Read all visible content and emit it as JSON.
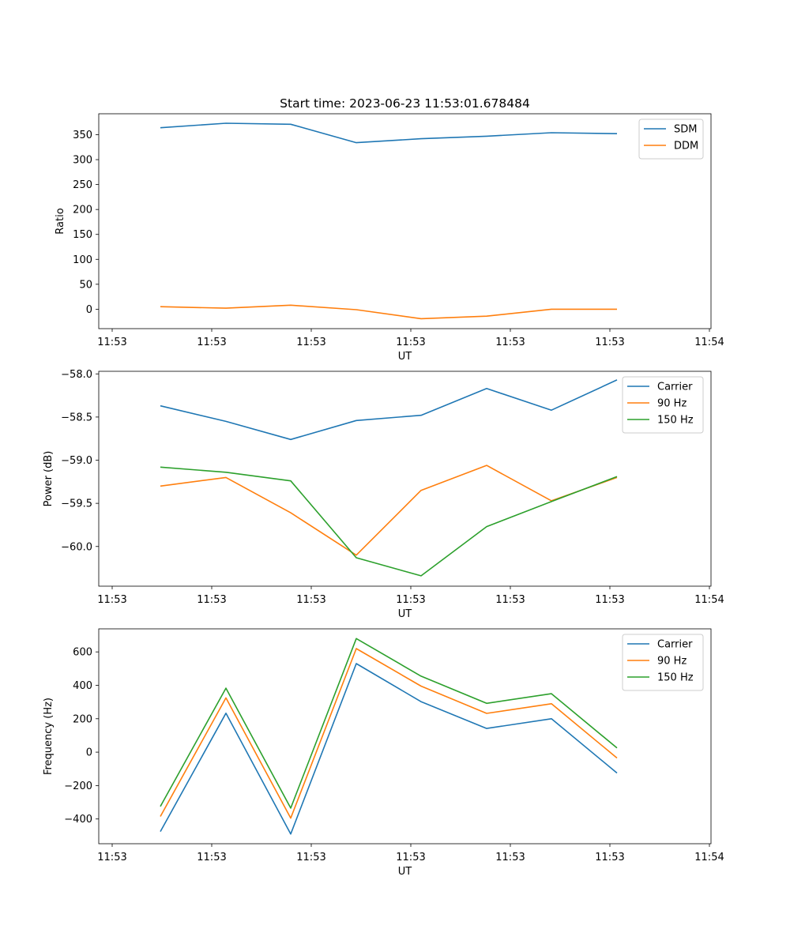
{
  "colors": {
    "blue": "#1f77b4",
    "orange": "#ff7f0e",
    "green": "#2ca02c"
  },
  "chart_data": [
    {
      "type": "line",
      "title": "Start time: 2023-06-23 11:53:01.678484",
      "xlabel": "UT",
      "ylabel": "Ratio",
      "x_ticks": [
        "11:53",
        "11:53",
        "11:53",
        "11:53",
        "11:53",
        "11:53",
        "11:53",
        "11:54"
      ],
      "y_ticks": [
        "0",
        "50",
        "100",
        "150",
        "200",
        "250",
        "300",
        "350"
      ],
      "ylim": [
        -39,
        392
      ],
      "grid": false,
      "legend": "top-right",
      "series": [
        {
          "name": "SDM",
          "color": "#1f77b4",
          "values": [
            364,
            373,
            371,
            334,
            342,
            347,
            354,
            352
          ]
        },
        {
          "name": "DDM",
          "color": "#ff7f0e",
          "values": [
            5,
            2,
            8,
            -1,
            -19,
            -14,
            0,
            0
          ]
        }
      ]
    },
    {
      "type": "line",
      "title": "",
      "xlabel": "UT",
      "ylabel": "Power (dB)",
      "x_ticks": [
        "11:53",
        "11:53",
        "11:53",
        "11:53",
        "11:53",
        "11:53",
        "11:53",
        "11:54"
      ],
      "y_ticks": [
        "−60.0",
        "−59.5",
        "−59.0",
        "−58.5",
        "−58.0"
      ],
      "y_tick_values": [
        -60.0,
        -59.5,
        -59.0,
        -58.5,
        -58.0
      ],
      "ylim": [
        -60.46,
        -57.97
      ],
      "grid": false,
      "legend": "top-right",
      "series": [
        {
          "name": "Carrier",
          "color": "#1f77b4",
          "values": [
            -58.37,
            -58.55,
            -58.76,
            -58.54,
            -58.48,
            -58.17,
            -58.42,
            -58.07
          ]
        },
        {
          "name": "90 Hz",
          "color": "#ff7f0e",
          "values": [
            -59.3,
            -59.2,
            -59.61,
            -60.1,
            -59.35,
            -59.06,
            -59.47,
            -59.2
          ]
        },
        {
          "name": "150 Hz",
          "color": "#2ca02c",
          "values": [
            -59.08,
            -59.14,
            -59.24,
            -60.13,
            -60.34,
            -59.77,
            -59.48,
            -59.19
          ]
        }
      ]
    },
    {
      "type": "line",
      "title": "",
      "xlabel": "UT",
      "ylabel": "Frequency (Hz)",
      "x_ticks": [
        "11:53",
        "11:53",
        "11:53",
        "11:53",
        "11:53",
        "11:53",
        "11:53",
        "11:54"
      ],
      "y_ticks": [
        "−400",
        "−200",
        "0",
        "200",
        "400",
        "600"
      ],
      "y_tick_values": [
        -400,
        -200,
        0,
        200,
        400,
        600
      ],
      "ylim": [
        -548,
        738
      ],
      "grid": false,
      "legend": "top-right",
      "series": [
        {
          "name": "Carrier",
          "color": "#1f77b4",
          "values": [
            -475,
            233,
            -490,
            530,
            302,
            142,
            200,
            -125
          ]
        },
        {
          "name": "90 Hz",
          "color": "#ff7f0e",
          "values": [
            -385,
            325,
            -395,
            620,
            395,
            232,
            290,
            -35
          ]
        },
        {
          "name": "150 Hz",
          "color": "#2ca02c",
          "values": [
            -325,
            383,
            -335,
            680,
            455,
            292,
            350,
            25
          ]
        }
      ]
    }
  ]
}
